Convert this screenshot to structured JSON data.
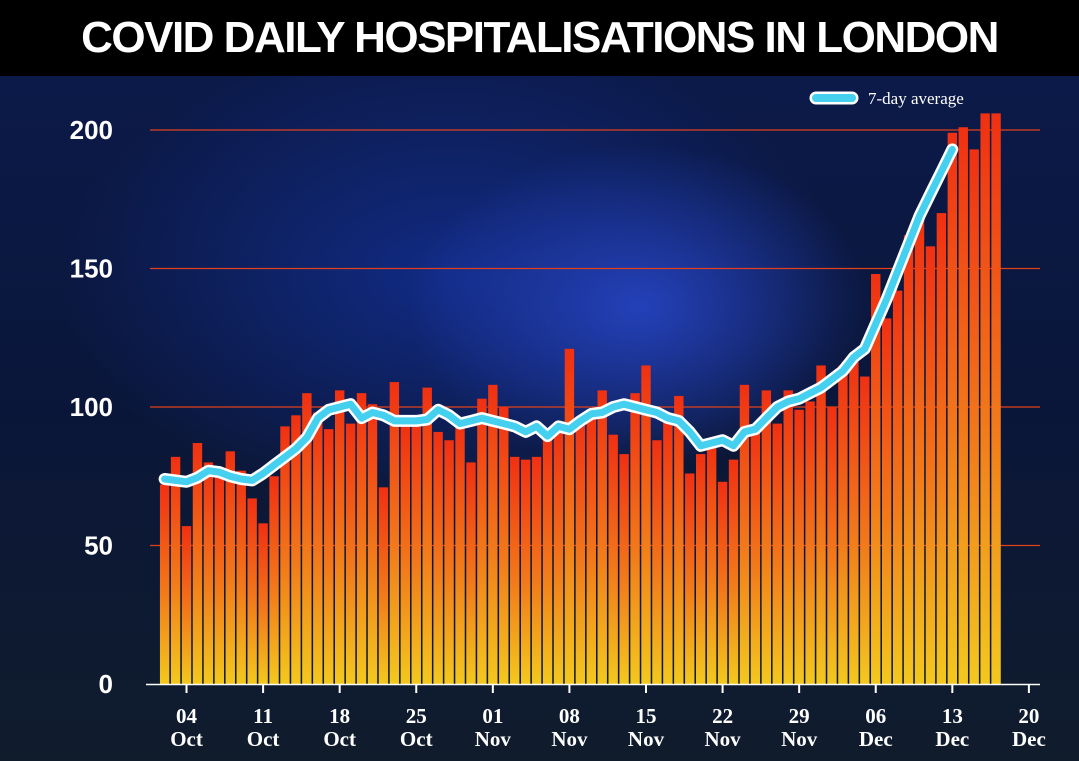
{
  "chart_data": {
    "type": "bar",
    "title": "COVID DAILY HOSPITALISATIONS IN LONDON",
    "ylim": [
      0,
      210
    ],
    "yticks": [
      "0",
      "50",
      "100",
      "150",
      "200"
    ],
    "grid": "horizontal",
    "xticks": [
      {
        "day": "04",
        "month": "Oct",
        "index": 3
      },
      {
        "day": "11",
        "month": "Oct",
        "index": 10
      },
      {
        "day": "18",
        "month": "Oct",
        "index": 17
      },
      {
        "day": "25",
        "month": "Oct",
        "index": 24
      },
      {
        "day": "01",
        "month": "Nov",
        "index": 31
      },
      {
        "day": "08",
        "month": "Nov",
        "index": 38
      },
      {
        "day": "15",
        "month": "Nov",
        "index": 45
      },
      {
        "day": "22",
        "month": "Nov",
        "index": 52
      },
      {
        "day": "29",
        "month": "Nov",
        "index": 59
      },
      {
        "day": "06",
        "month": "Dec",
        "index": 66
      },
      {
        "day": "13",
        "month": "Dec",
        "index": 73
      },
      {
        "day": "20",
        "month": "Dec",
        "index": 80
      }
    ],
    "bars": [
      0,
      72,
      82,
      57,
      87,
      80,
      75,
      84,
      77,
      67,
      58,
      75,
      93,
      97,
      105,
      98,
      92,
      106,
      94,
      105,
      101,
      71,
      109,
      93,
      95,
      107,
      91,
      88,
      94,
      80,
      103,
      108,
      100,
      82,
      81,
      82,
      90,
      92,
      121,
      96,
      98,
      106,
      90,
      83,
      105,
      115,
      88,
      95,
      104,
      76,
      83,
      87,
      73,
      81,
      108,
      93,
      106,
      94,
      106,
      99,
      102,
      115,
      100,
      115,
      118,
      111,
      148,
      132,
      142,
      162,
      168,
      158,
      170,
      199,
      201,
      193,
      206,
      206
    ],
    "series": [
      {
        "name": "7-day average",
        "start_index": 1,
        "values": [
          74,
          73.5,
          73,
          74.5,
          77,
          76.5,
          75,
          74,
          73.5,
          76,
          79,
          82,
          85,
          89,
          96,
          99,
          100,
          101,
          96,
          98,
          97,
          95,
          95,
          95,
          95.5,
          99,
          97,
          94,
          95,
          96,
          95,
          94,
          93,
          91,
          93,
          89.5,
          93,
          92,
          95,
          97.5,
          98,
          100,
          101,
          100,
          99,
          98,
          96,
          95,
          91,
          86,
          87,
          88,
          86,
          91,
          92,
          96,
          100,
          102,
          103,
          105,
          107,
          110,
          113,
          118,
          121,
          130,
          139,
          149,
          159,
          169,
          177,
          185,
          193
        ]
      }
    ]
  },
  "colors": {
    "bar_top": "#f03012",
    "bar_bottom": "#f3c81e",
    "line": "#44d0ee",
    "gridline": "#e0401c"
  }
}
